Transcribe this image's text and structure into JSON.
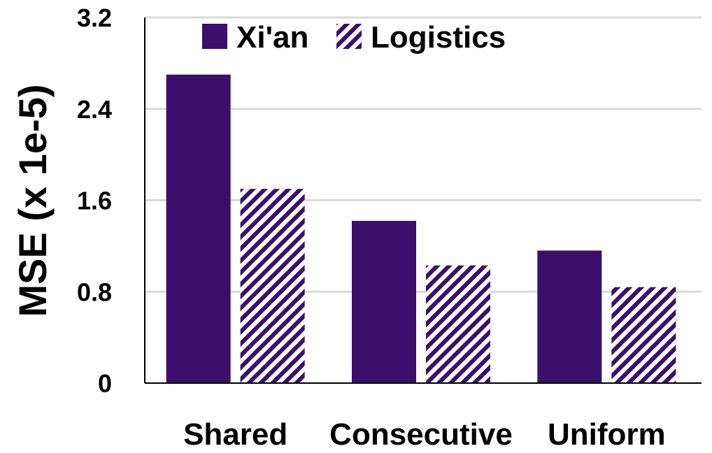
{
  "chart_data": {
    "type": "bar",
    "categories": [
      "Shared",
      "Consecutive",
      "Uniform"
    ],
    "series": [
      {
        "name": "Xi'an",
        "values": [
          2.7,
          1.42,
          1.16
        ],
        "color": "#3b0f6b",
        "pattern": "solid"
      },
      {
        "name": "Logistics",
        "values": [
          1.7,
          1.03,
          0.84
        ],
        "color": "#3b0f6b",
        "pattern": "diagonal-hatch"
      }
    ],
    "title": "",
    "xlabel": "",
    "ylabel": "MSE (x 1e-5)",
    "ylim": [
      0,
      3.2
    ],
    "yticks": [
      "0",
      "0.8",
      "1.6",
      "2.4",
      "3.2"
    ],
    "grid": true,
    "legend": "top"
  }
}
